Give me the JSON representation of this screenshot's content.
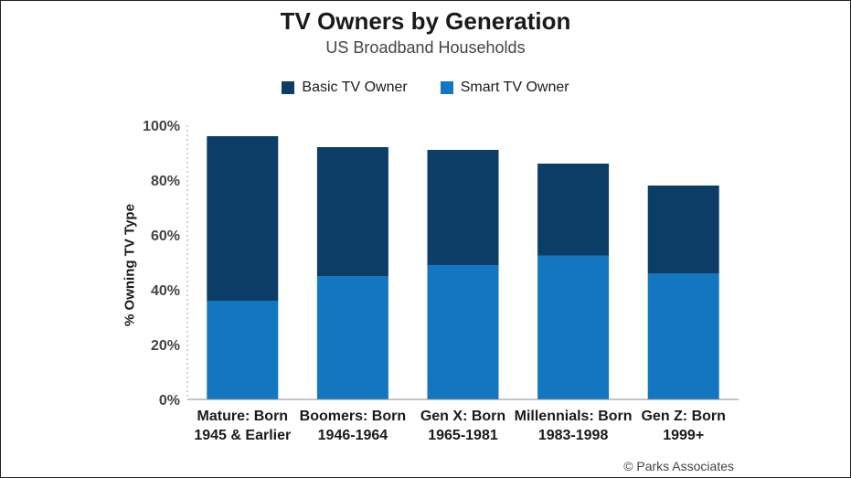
{
  "chart_data": {
    "type": "bar",
    "stacked": true,
    "title": "TV Owners by Generation",
    "subtitle": "US Broadband Households",
    "ylabel": "% Owning TV Type",
    "ylim": [
      0,
      100
    ],
    "yticks": [
      "0%",
      "20%",
      "40%",
      "60%",
      "80%",
      "100%"
    ],
    "categories": [
      [
        "Mature: Born",
        "1945 & Earlier"
      ],
      [
        "Boomers: Born",
        "1946-1964"
      ],
      [
        "Gen X: Born",
        "1965-1981"
      ],
      [
        "Millennials: Born",
        "1983-1998"
      ],
      [
        "Gen Z: Born",
        "1999+"
      ]
    ],
    "series": [
      {
        "name": "Smart TV Owner",
        "color": "#1276c1",
        "values": [
          36,
          45,
          49,
          52.5,
          46
        ]
      },
      {
        "name": "Basic TV Owner",
        "color": "#0c3d66",
        "values": [
          60,
          47,
          42,
          33.5,
          32
        ]
      }
    ],
    "legend_order": [
      "Basic TV Owner",
      "Smart TV Owner"
    ],
    "legend_position": "top-center",
    "grid": false,
    "credit": "© Parks Associates"
  }
}
